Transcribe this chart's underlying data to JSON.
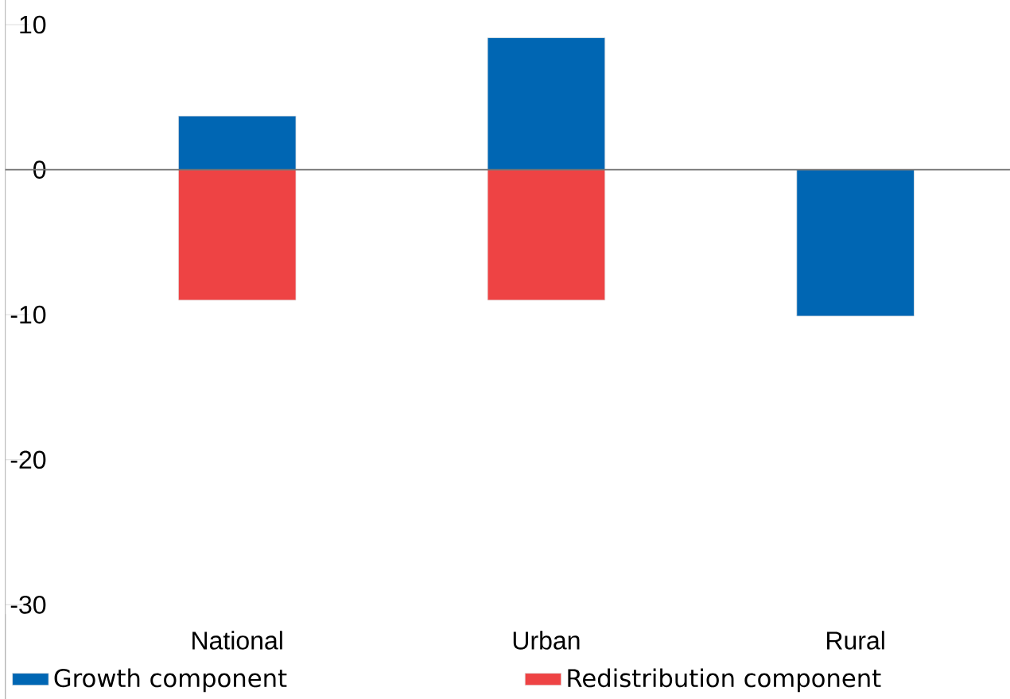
{
  "chart_data": {
    "type": "bar",
    "stacked": true,
    "categories": [
      "National",
      "Urban",
      "Rural"
    ],
    "series": [
      {
        "name": "Growth component",
        "color": "#0066b3",
        "values": [
          3.7,
          9.1,
          -10.1
        ]
      },
      {
        "name": "Redistribution component",
        "color": "#ee4344",
        "values": [
          -9.0,
          -9.0,
          null
        ]
      }
    ],
    "ylim": [
      -36.5,
      11.7
    ],
    "yticks": [
      -30,
      -20,
      -10,
      0,
      10
    ],
    "legend": "bottom"
  }
}
